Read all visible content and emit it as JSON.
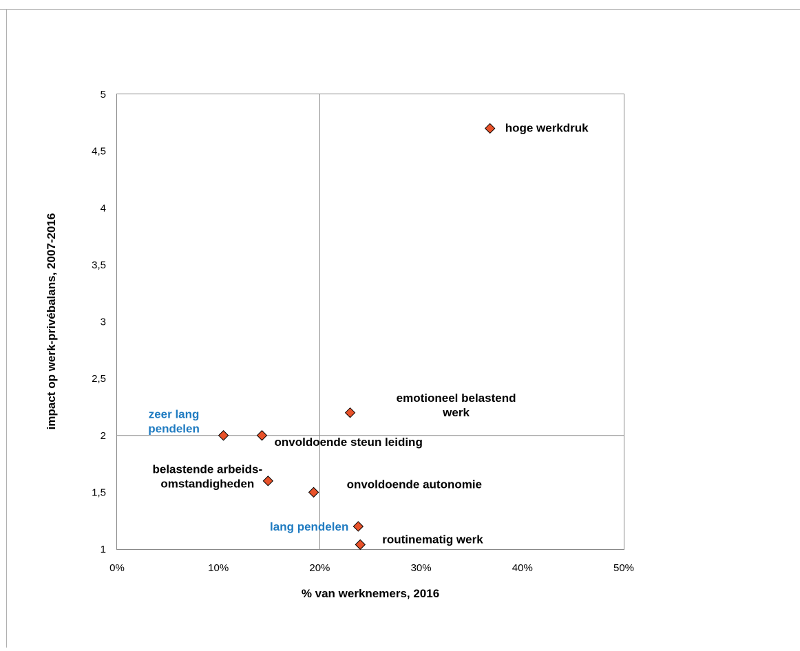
{
  "chart_data": {
    "type": "scatter",
    "xlabel": "% van werknemers, 2016",
    "ylabel": "impact op werk-privébalans, 2007-2016",
    "xlim": [
      0,
      50
    ],
    "ylim": [
      1,
      5
    ],
    "x_ticks": [
      "0%",
      "10%",
      "20%",
      "30%",
      "40%",
      "50%"
    ],
    "y_ticks": [
      "1",
      "1,5",
      "2",
      "2,5",
      "3",
      "3,5",
      "4",
      "4,5",
      "5"
    ],
    "reference_lines": {
      "x": 20,
      "y": 2
    },
    "grid": false,
    "marker_color": "#e8522a",
    "points": [
      {
        "x": 36.8,
        "y": 4.7,
        "label": [
          "hoge werkdruk"
        ],
        "label_color": "#000000"
      },
      {
        "x": 23.0,
        "y": 2.2,
        "label": [
          "emotioneel belastend",
          "werk"
        ],
        "label_color": "#000000"
      },
      {
        "x": 10.5,
        "y": 2.0,
        "label": [
          "zeer lang",
          "pendelen"
        ],
        "label_color": "#1f7bc1"
      },
      {
        "x": 14.3,
        "y": 2.0,
        "label": [
          "onvoldoende steun leiding"
        ],
        "label_color": "#000000"
      },
      {
        "x": 14.9,
        "y": 1.6,
        "label": [
          "belastende arbeids-",
          "omstandigheden"
        ],
        "label_color": "#000000"
      },
      {
        "x": 19.4,
        "y": 1.5,
        "label": [
          "onvoldoende autonomie"
        ],
        "label_color": "#000000"
      },
      {
        "x": 23.8,
        "y": 1.2,
        "label": [
          "lang pendelen"
        ],
        "label_color": "#1f7bc1"
      },
      {
        "x": 24.0,
        "y": 1.04,
        "label": [
          "routinematig werk"
        ],
        "label_color": "#000000"
      }
    ]
  }
}
